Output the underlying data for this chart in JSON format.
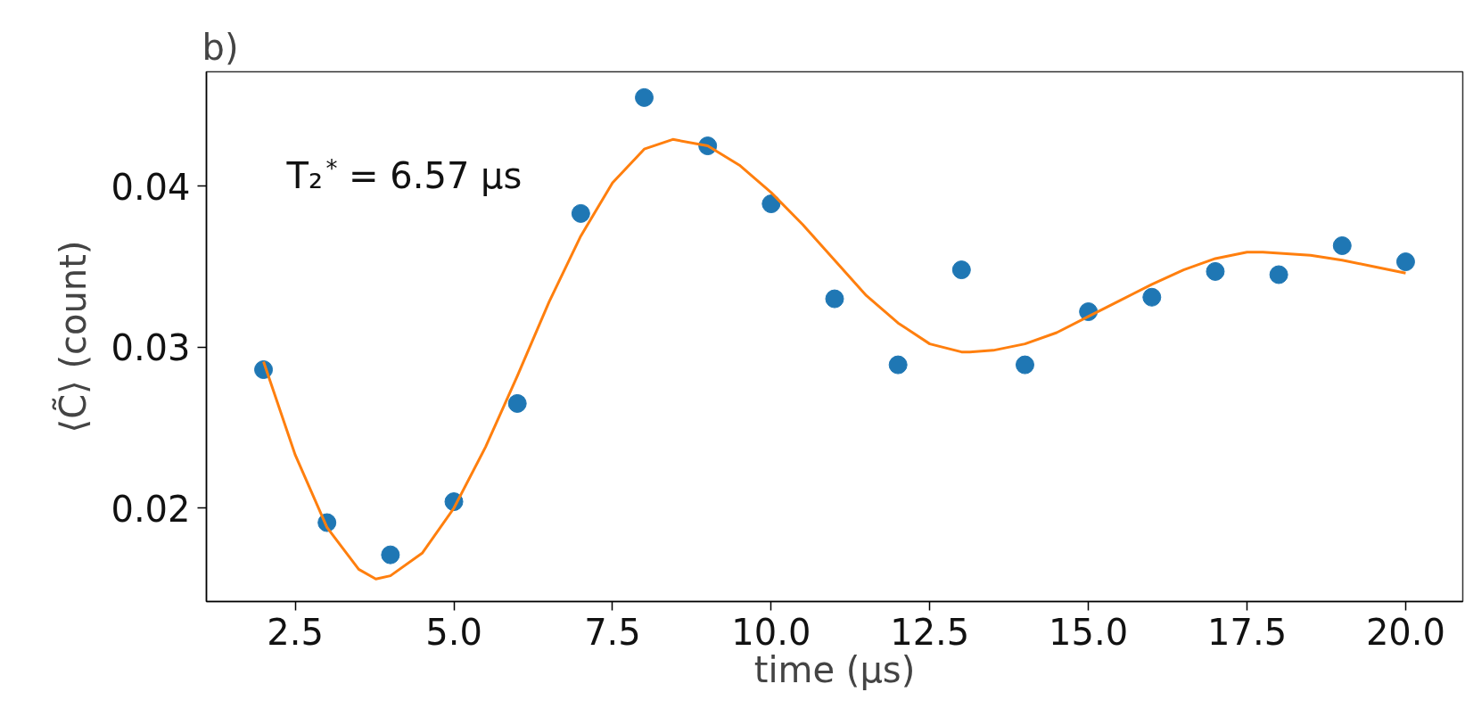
{
  "chart_data": {
    "type": "scatter",
    "title": "b)",
    "xlabel": "time (μs)",
    "ylabel": "⟨C̃⟩ (count)",
    "annotations": [
      "T₂$^{*}$ = 6.57 μs"
    ],
    "xlim": [
      1.1,
      20.9
    ],
    "ylim": [
      0.0142,
      0.0471
    ],
    "xticks": [
      2.5,
      {
        "value": 5,
        "label": "5.0"
      },
      7.5,
      {
        "value": 10,
        "label": "10.0"
      },
      12.5,
      {
        "value": 15,
        "label": "15.0"
      },
      17.5,
      {
        "value": 20,
        "label": "20.0"
      }
    ],
    "yticks": [
      {
        "value": 0.02,
        "label": "0.02"
      },
      {
        "value": 0.03,
        "label": "0.03"
      },
      {
        "value": 0.04,
        "label": "0.04"
      }
    ],
    "grid": false,
    "series": [
      {
        "marker": "circle",
        "color": "#1f77b4",
        "x": [
          2,
          3,
          4,
          5,
          6,
          7,
          8,
          9,
          10,
          11,
          12,
          13,
          14,
          15,
          16,
          17,
          18,
          19,
          20
        ],
        "values": [
          0.0286,
          0.0191,
          0.0171,
          0.0204,
          0.0265,
          0.0383,
          0.0455,
          0.0425,
          0.0389,
          0.033,
          0.0289,
          0.0348,
          0.0289,
          0.0322,
          0.0331,
          0.0347,
          0.0345,
          0.0363,
          0.0353
        ]
      },
      {
        "type": "line",
        "line_style": "solid",
        "color": "#ff7f0e",
        "x": [
          2,
          2.5,
          3,
          3.5,
          3.77,
          4,
          4.5,
          5,
          5.5,
          6,
          6.5,
          7,
          7.5,
          8,
          8.45,
          9,
          9.5,
          10,
          10.5,
          11,
          11.5,
          12,
          12.5,
          13,
          13.13,
          13.5,
          14,
          14.5,
          15,
          15.5,
          16,
          16.5,
          17,
          17.5,
          17.75,
          18.5,
          19,
          19.5,
          20
        ],
        "values": [
          0.0291,
          0.0233,
          0.0188,
          0.0162,
          0.0156,
          0.0158,
          0.0172,
          0.02,
          0.0238,
          0.0282,
          0.0328,
          0.0369,
          0.0402,
          0.0423,
          0.0429,
          0.0425,
          0.0413,
          0.0396,
          0.0376,
          0.0354,
          0.0332,
          0.0315,
          0.0302,
          0.0297,
          0.0297,
          0.0298,
          0.0302,
          0.0309,
          0.0319,
          0.0329,
          0.0339,
          0.0348,
          0.0355,
          0.0359,
          0.0359,
          0.0357,
          0.0354,
          0.035,
          0.0346
        ]
      }
    ]
  }
}
